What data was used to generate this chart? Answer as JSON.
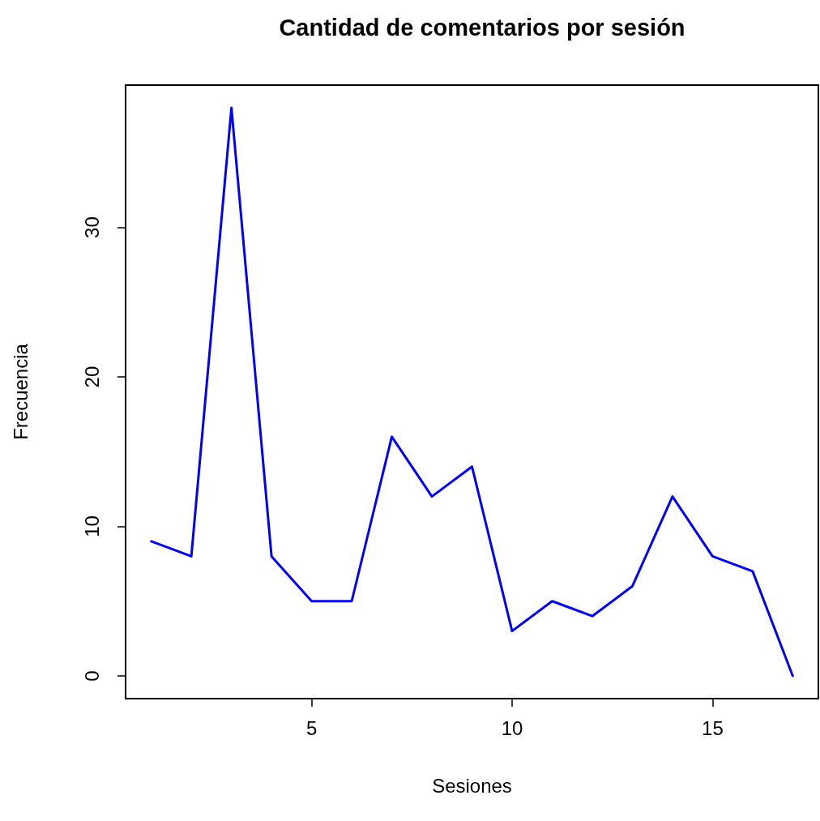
{
  "chart_data": {
    "type": "line",
    "title": "Cantidad de comentarios por sesión",
    "xlabel": "Sesiones",
    "ylabel": "Frecuencia",
    "x": [
      1,
      2,
      3,
      4,
      5,
      6,
      7,
      8,
      9,
      10,
      11,
      12,
      13,
      14,
      15,
      16,
      17
    ],
    "series": [
      {
        "color": "#0000ff",
        "values": [
          9,
          8,
          38,
          8,
          5,
          5,
          16,
          12,
          14,
          3,
          5,
          4,
          6,
          12,
          8,
          7,
          0
        ]
      }
    ],
    "xlim": [
      0.36,
      17.64
    ],
    "ylim": [
      -1.52,
      39.52
    ],
    "xticks": [
      5,
      10,
      15
    ],
    "yticks": [
      0,
      10,
      20,
      30
    ],
    "grid": false,
    "marker": "none",
    "line_style": "solid"
  }
}
